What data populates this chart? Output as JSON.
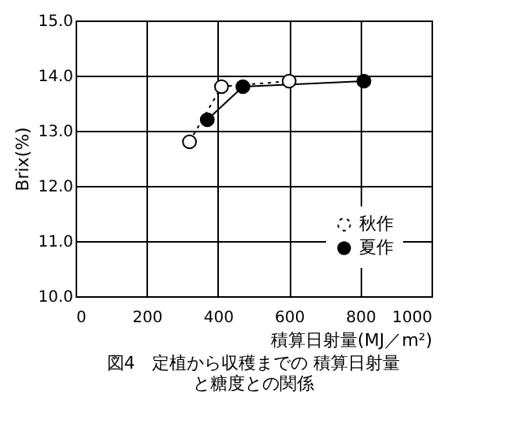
{
  "chart_data": {
    "type": "line",
    "title": "図4　定植から収穫までの 積算日射量と糖度との関係",
    "xlabel": "積算日射量(MJ／m²)",
    "ylabel": "Brix(%)",
    "series": [
      {
        "name": "秋作",
        "color": "#000000",
        "line_style": "dotted",
        "x": [
          320,
          410,
          600
        ],
        "values": [
          12.8,
          13.8,
          13.9
        ]
      },
      {
        "name": "夏作",
        "color": "#000000",
        "line_style": "solid",
        "x": [
          370,
          470,
          810
        ],
        "values": [
          13.2,
          13.8,
          13.9
        ]
      }
    ],
    "xlim": [
      0,
      1000
    ],
    "xticks": [
      0,
      200,
      400,
      600,
      800,
      1000
    ],
    "ylim": [
      10,
      15
    ],
    "yticks": [
      {
        "value": 10,
        "label": "10.0"
      },
      {
        "value": 11,
        "label": "11.0"
      },
      {
        "value": 12,
        "label": "12.0"
      },
      {
        "value": 13,
        "label": "13.0"
      },
      {
        "value": 14,
        "label": "14.0"
      },
      {
        "value": 15,
        "label": "15.0"
      }
    ],
    "grid": true,
    "legend": "bottom right",
    "marker": "circle"
  }
}
